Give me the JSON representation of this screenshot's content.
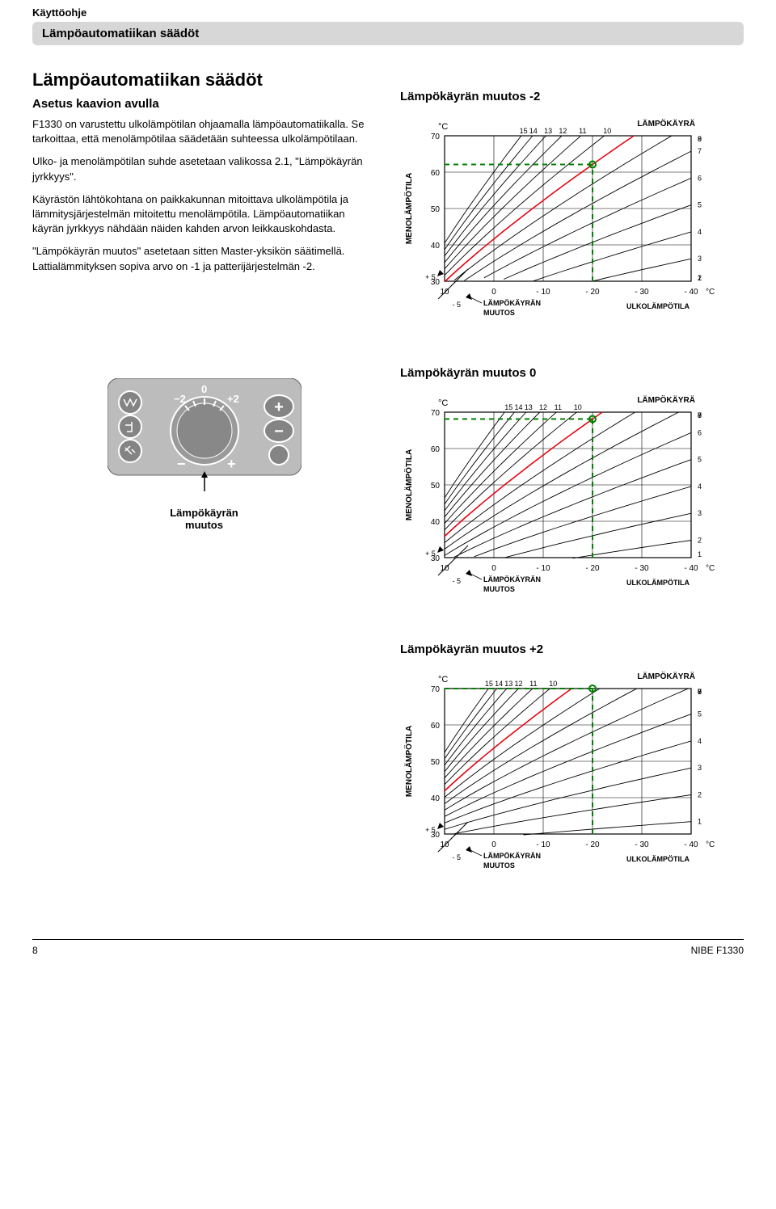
{
  "header": {
    "top_label": "Käyttöohje",
    "sub_label": "Lämpöautomatiikan säädöt"
  },
  "main": {
    "title": "Lämpöautomatiikan säädöt",
    "subtitle": "Asetus kaavion avulla",
    "p1": "F1330 on varustettu ulkolämpötilan ohjaamalla lämpöautomatiikalla. Se tarkoittaa, että menolämpötilaa säädetään suhteessa ulkolämpötilaan.",
    "p2": "Ulko- ja menolämpötilan suhde asetetaan valikossa 2.1, \"Lämpökäyrän jyrkkyys\".",
    "p3": "Käyrästön lähtökohtana on paikkakunnan mitoittava ulkolämpötila ja lämmitysjärjestelmän mitoitettu menolämpötila. Lämpöautomatiikan käyrän jyrkkyys nähdään näiden kahden arvon leikkauskohdasta.",
    "p4": "\"Lämpökäyrän muutos\" asetetaan sitten Master-yksikön säätimellä. Lattialämmityksen sopiva arvo on -1 ja patterijärjestelmän -2."
  },
  "dial": {
    "caption": "Lämpökäyrän\nmuutos",
    "minus2": "−2",
    "zero": "0",
    "plus2": "+2",
    "minus": "−",
    "plus": "+",
    "plus_btn": "+",
    "minus_btn": "−"
  },
  "chart_common": {
    "y_axis_label": "MENOLÄMPÖTILA",
    "x_axis_label_right": "ULKOLÄMPÖTILA",
    "curve_label": "LÄMPÖKÄYRÄ",
    "shift_label": "LÄMPÖKÄYRÄN\nMUUTOS",
    "unit": "°C",
    "x_ticks": [
      10,
      0,
      -10,
      -20,
      -30,
      -40
    ],
    "y_ticks": [
      30,
      40,
      50,
      60,
      70
    ],
    "curve_right_labels": [
      1,
      2,
      3,
      4,
      5,
      6,
      7,
      8,
      9
    ],
    "curve_top_labels": [
      15,
      14,
      13,
      12,
      11,
      10
    ],
    "plus5": "+ 5",
    "minus5": "- 5"
  },
  "charts": [
    {
      "title": "Lämpökäyrän muutos -2",
      "shift": -2,
      "highlight_curve": 9
    },
    {
      "title": "Lämpökäyrän muutos 0",
      "shift": 0,
      "highlight_curve": 9
    },
    {
      "title": "Lämpökäyrän muutos +2",
      "shift": 2,
      "highlight_curve": 9
    }
  ],
  "styling": {
    "grid_color": "#000000",
    "curve_color": "#000000",
    "highlight_color": "#e30613",
    "dashed_green": "#008000",
    "dial_bg": "#bcbcbc",
    "dial_knob": "#9a9a9a",
    "dial_icon_bg": "#848484"
  },
  "footer": {
    "page_num": "8",
    "product": "NIBE F1330"
  }
}
